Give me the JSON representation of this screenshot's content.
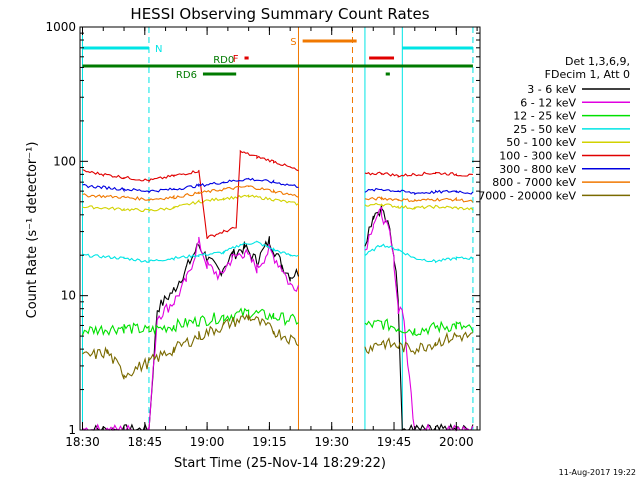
{
  "chart_data": {
    "type": "line",
    "title": "HESSI Observing Summary Count Rates",
    "xlabel": "Start Time (25-Nov-14 18:29:22)",
    "ylabel": "Count Rate (s⁻¹ detector⁻¹)",
    "y_scale": "log",
    "ylim": [
      1,
      1000
    ],
    "xlim": [
      "18:30",
      "20:05"
    ],
    "x_ticks": [
      "18:30",
      "18:45",
      "19:00",
      "19:15",
      "19:30",
      "19:45",
      "20:00"
    ],
    "y_ticks": [
      "1",
      "10",
      "100",
      "1000"
    ],
    "legend": {
      "placement": "right",
      "header": [
        "Det 1,3,6,9,",
        "FDecim 1, Att 0"
      ]
    },
    "footer_timestamp": "11-Aug-2017 19:22",
    "flags": [
      {
        "label": "N",
        "color": "#00e5e5",
        "spans": [
          [
            "18:30",
            "18:46"
          ],
          [
            "19:47",
            "20:04"
          ]
        ]
      },
      {
        "label": "S",
        "color": "#f07800",
        "spans": [
          [
            "19:23",
            "19:36"
          ]
        ]
      },
      {
        "label": "F",
        "color": "#e00000",
        "spans": [
          [
            "19:09",
            "19:10"
          ],
          [
            "19:39",
            "19:45"
          ]
        ]
      },
      {
        "label": "RD0",
        "color": "#007a00",
        "spans": [
          [
            "18:30",
            "20:04"
          ]
        ]
      },
      {
        "label": "RD6",
        "color": "#007a00",
        "spans": [
          [
            "18:59",
            "19:07"
          ],
          [
            "19:43",
            "19:44"
          ]
        ]
      }
    ],
    "gaps": [
      [
        "19:22",
        "19:38"
      ]
    ],
    "vlines": [
      {
        "time": "18:30",
        "color": "#00e5e5",
        "style": "solid"
      },
      {
        "time": "18:46",
        "color": "#00e5e5",
        "style": "dashed"
      },
      {
        "time": "19:22",
        "color": "#f07800",
        "style": "solid"
      },
      {
        "time": "19:35",
        "color": "#f07800",
        "style": "dashed"
      },
      {
        "time": "19:38",
        "color": "#00e5e5",
        "style": "solid"
      },
      {
        "time": "19:47",
        "color": "#00e5e5",
        "style": "solid"
      },
      {
        "time": "20:04",
        "color": "#00e5e5",
        "style": "dashed"
      }
    ],
    "series": [
      {
        "name": "3 - 6 keV",
        "color": "#000000",
        "x": [
          "18:30",
          "18:46",
          "18:48",
          "18:52",
          "18:55",
          "18:58",
          "19:00",
          "19:03",
          "19:06",
          "19:09",
          "19:12",
          "19:15",
          "19:18",
          "19:20",
          "19:22",
          "19:38",
          "19:40",
          "19:42",
          "19:44",
          "19:45",
          "19:46",
          "19:47",
          "19:50",
          "19:55",
          "20:00",
          "20:04"
        ],
        "y": [
          1,
          1,
          8,
          11,
          16,
          24,
          19,
          15,
          20,
          23,
          18,
          26,
          17,
          14,
          15,
          25,
          40,
          45,
          30,
          20,
          10,
          1,
          1,
          1,
          1,
          1
        ]
      },
      {
        "name": "6 - 12 keV",
        "color": "#e000e0",
        "x": [
          "18:30",
          "18:46",
          "18:48",
          "18:52",
          "18:55",
          "18:58",
          "19:00",
          "19:03",
          "19:06",
          "19:09",
          "19:12",
          "19:15",
          "19:18",
          "19:20",
          "19:22",
          "19:38",
          "19:40",
          "19:42",
          "19:44",
          "19:45",
          "19:46",
          "19:47",
          "19:50",
          "19:55",
          "20:00",
          "20:04"
        ],
        "y": [
          1,
          1,
          7,
          9,
          13,
          25,
          17,
          14,
          19,
          21,
          16,
          22,
          16,
          12,
          12,
          22,
          35,
          42,
          28,
          18,
          8,
          8,
          1,
          1,
          1,
          1
        ]
      },
      {
        "name": "12 - 25 keV",
        "color": "#00e000",
        "x": [
          "18:30",
          "18:40",
          "18:46",
          "18:52",
          "18:58",
          "19:04",
          "19:10",
          "19:16",
          "19:22",
          "19:38",
          "19:42",
          "19:46",
          "19:50",
          "19:55",
          "20:00",
          "20:04"
        ],
        "y": [
          5.5,
          5.8,
          5.5,
          6,
          6.5,
          7,
          7.5,
          7,
          6.5,
          6,
          6.2,
          5.8,
          5.5,
          5.8,
          6,
          5.5
        ]
      },
      {
        "name": "25 - 50 keV",
        "color": "#00e5e5",
        "x": [
          "18:30",
          "18:40",
          "18:46",
          "18:52",
          "18:58",
          "19:04",
          "19:08",
          "19:12",
          "19:16",
          "19:20",
          "19:22",
          "19:38",
          "19:42",
          "19:46",
          "19:50",
          "19:55",
          "20:00",
          "20:04"
        ],
        "y": [
          20,
          19,
          18,
          19,
          20,
          21,
          24,
          25,
          22,
          20,
          20,
          20,
          24,
          22,
          19,
          18,
          19,
          19
        ]
      },
      {
        "name": "50 - 100 keV",
        "color": "#d2d200",
        "x": [
          "18:30",
          "18:40",
          "18:46",
          "18:52",
          "18:58",
          "19:04",
          "19:10",
          "19:16",
          "19:22",
          "19:38",
          "19:42",
          "19:46",
          "19:50",
          "19:55",
          "20:00",
          "20:04"
        ],
        "y": [
          46,
          44,
          43,
          45,
          50,
          53,
          55,
          52,
          48,
          47,
          48,
          46,
          45,
          46,
          45,
          44
        ]
      },
      {
        "name": "100 - 300 keV",
        "color": "#e00000",
        "x": [
          "18:30",
          "18:35",
          "18:40",
          "18:46",
          "18:52",
          "18:58",
          "19:00",
          "19:04",
          "19:07",
          "19:08",
          "19:12",
          "19:16",
          "19:20",
          "19:22",
          "19:38",
          "19:42",
          "19:46",
          "19:50",
          "19:55",
          "20:00",
          "20:04"
        ],
        "y": [
          85,
          80,
          76,
          72,
          78,
          85,
          27,
          30,
          32,
          118,
          108,
          100,
          90,
          85,
          80,
          82,
          78,
          80,
          82,
          80,
          78
        ]
      },
      {
        "name": "300 - 800 keV",
        "color": "#0000e0",
        "x": [
          "18:30",
          "18:40",
          "18:46",
          "18:52",
          "18:58",
          "19:04",
          "19:10",
          "19:16",
          "19:22",
          "19:38",
          "19:42",
          "19:46",
          "19:50",
          "19:55",
          "20:00",
          "20:04"
        ],
        "y": [
          66,
          62,
          60,
          62,
          66,
          70,
          74,
          70,
          65,
          60,
          62,
          60,
          58,
          59,
          60,
          58
        ]
      },
      {
        "name": "800 - 7000 keV",
        "color": "#f07800",
        "x": [
          "18:30",
          "18:40",
          "18:46",
          "18:52",
          "18:58",
          "19:04",
          "19:10",
          "19:16",
          "19:22",
          "19:38",
          "19:42",
          "19:46",
          "19:50",
          "19:55",
          "20:00",
          "20:04"
        ],
        "y": [
          56,
          54,
          52,
          54,
          58,
          62,
          65,
          60,
          55,
          52,
          53,
          52,
          51,
          52,
          52,
          50
        ]
      },
      {
        "name": "7000 - 20000 keV",
        "color": "#7a6a00",
        "x": [
          "18:30",
          "18:36",
          "18:40",
          "18:46",
          "18:52",
          "18:58",
          "19:04",
          "19:10",
          "19:16",
          "19:22",
          "19:38",
          "19:42",
          "19:46",
          "19:50",
          "19:55",
          "20:00",
          "20:04"
        ],
        "y": [
          3.5,
          3.8,
          2.6,
          3.2,
          4,
          5,
          6,
          7,
          5.5,
          4.5,
          4,
          4.5,
          4.2,
          4,
          4.5,
          5,
          5
        ]
      }
    ]
  }
}
